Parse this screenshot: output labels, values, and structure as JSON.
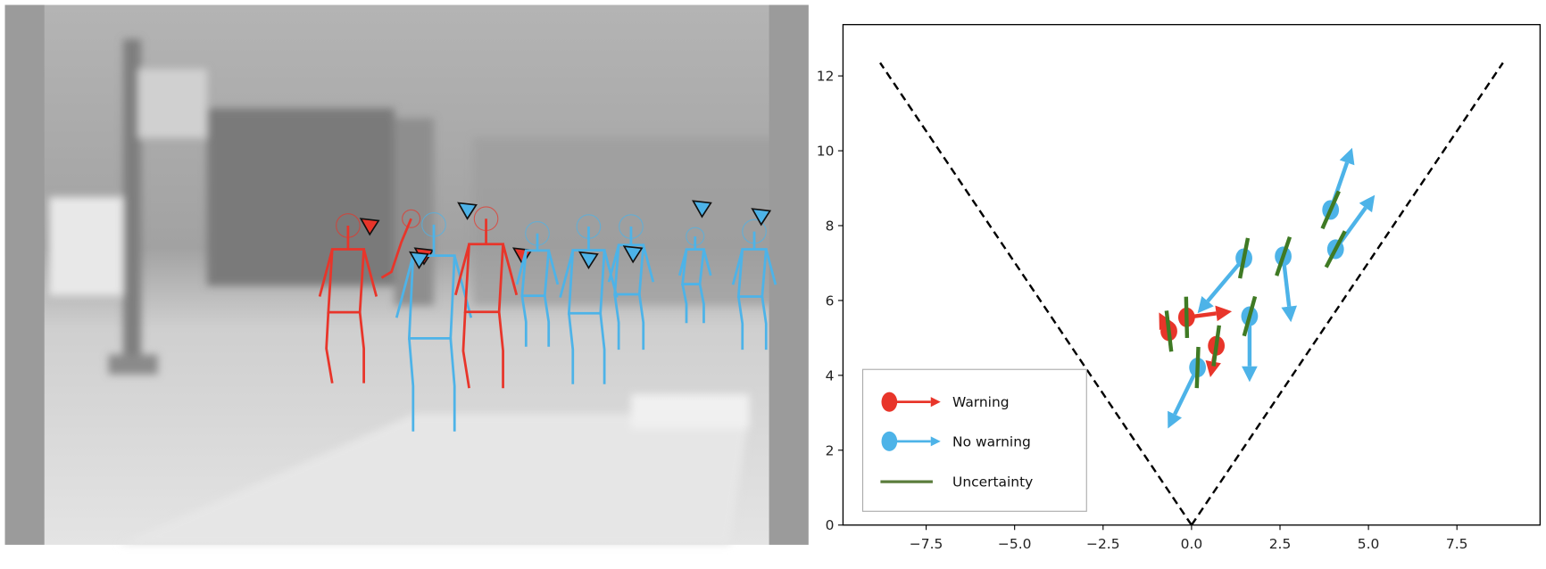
{
  "colors": {
    "warning": "#e8352a",
    "no_warning": "#4db3e8",
    "uncertainty": "#3f7a24",
    "legend_uncertainty": "#5b7d3c",
    "cone": "#000000"
  },
  "photo": {
    "figures": [
      {
        "status": "warning"
      },
      {
        "status": "warning"
      },
      {
        "status": "no_warning"
      },
      {
        "status": "warning"
      },
      {
        "status": "no_warning"
      },
      {
        "status": "no_warning"
      },
      {
        "status": "no_warning"
      },
      {
        "status": "no_warning"
      },
      {
        "status": "no_warning"
      }
    ]
  },
  "chart_data": {
    "type": "scatter",
    "xlim": [
      -9.85,
      9.85
    ],
    "ylim": [
      0,
      13.37
    ],
    "x_ticks": [
      -7.5,
      -5.0,
      -2.5,
      0.0,
      2.5,
      5.0,
      7.5
    ],
    "x_tick_labels": [
      "−7.5",
      "−5.0",
      "−2.5",
      "0.0",
      "2.5",
      "5.0",
      "7.5"
    ],
    "y_ticks": [
      0,
      2,
      4,
      6,
      8,
      10,
      12
    ],
    "y_tick_labels": [
      "0",
      "2",
      "4",
      "6",
      "8",
      "10",
      "12"
    ],
    "grid": false,
    "legend_placement": "bottom-left",
    "legend": [
      {
        "label": "Warning",
        "marker": "dot-arrow",
        "color": "#e8352a"
      },
      {
        "label": "No warning",
        "marker": "dot-arrow",
        "color": "#4db3e8"
      },
      {
        "label": "Uncertainty",
        "marker": "line",
        "color": "#5b7d3c"
      }
    ],
    "cone_lines": [
      {
        "x": [
          0,
          -8.8
        ],
        "y": [
          0,
          12.35
        ],
        "style": "dashed"
      },
      {
        "x": [
          0,
          8.8
        ],
        "y": [
          0,
          12.35
        ],
        "style": "dashed"
      }
    ],
    "uncertainty_half_length": 0.55,
    "series": [
      {
        "name": "Warning",
        "color": "#e8352a",
        "points": [
          {
            "x": -0.64,
            "y": 5.18,
            "arrow_x": -0.92,
            "arrow_y": 5.68
          },
          {
            "x": -0.14,
            "y": 5.55,
            "arrow_x": 1.14,
            "arrow_y": 5.71
          },
          {
            "x": 0.7,
            "y": 4.79,
            "arrow_x": 0.53,
            "arrow_y": 3.95
          }
        ]
      },
      {
        "name": "No warning",
        "color": "#4db3e8",
        "points": [
          {
            "x": 1.48,
            "y": 7.13,
            "arrow_x": 0.17,
            "arrow_y": 5.66
          },
          {
            "x": 2.59,
            "y": 7.18,
            "arrow_x": 2.81,
            "arrow_y": 5.42
          },
          {
            "x": 3.93,
            "y": 8.42,
            "arrow_x": 4.54,
            "arrow_y": 10.08
          },
          {
            "x": 4.07,
            "y": 7.37,
            "arrow_x": 5.18,
            "arrow_y": 8.82
          },
          {
            "x": 1.64,
            "y": 5.58,
            "arrow_x": 1.64,
            "arrow_y": 3.82
          },
          {
            "x": 0.17,
            "y": 4.21,
            "arrow_x": -0.67,
            "arrow_y": 2.58
          }
        ]
      }
    ]
  }
}
